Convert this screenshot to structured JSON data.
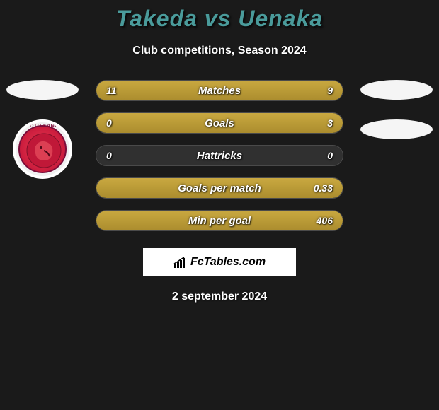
{
  "header": {
    "title": "Takeda vs Uenaka",
    "subtitle": "Club competitions, Season 2024",
    "title_color": "#4a9b9b"
  },
  "players": {
    "left": {
      "name": "Takeda",
      "club_badge_text": "KYOTO SANGA"
    },
    "right": {
      "name": "Uenaka"
    }
  },
  "stats": [
    {
      "label": "Matches",
      "left_val": "11",
      "right_val": "9",
      "left_fill_pct": 55,
      "right_fill_pct": 45,
      "mode": "full"
    },
    {
      "label": "Goals",
      "left_val": "0",
      "right_val": "3",
      "left_fill_pct": 0,
      "right_fill_pct": 100,
      "mode": "full"
    },
    {
      "label": "Hattricks",
      "left_val": "0",
      "right_val": "0",
      "left_fill_pct": 0,
      "right_fill_pct": 0,
      "mode": "empty"
    },
    {
      "label": "Goals per match",
      "left_val": "",
      "right_val": "0.33",
      "left_fill_pct": 0,
      "right_fill_pct": 100,
      "mode": "full"
    },
    {
      "label": "Min per goal",
      "left_val": "",
      "right_val": "406",
      "left_fill_pct": 0,
      "right_fill_pct": 100,
      "mode": "full"
    }
  ],
  "styling": {
    "bar_bg": "#303030",
    "bar_fill_top": "#c9a840",
    "bar_fill_bottom": "#ab8d2e",
    "page_bg": "#1a1a1a",
    "flag_bg": "#f5f5f5",
    "badge_border": "#ffffff",
    "badge_fill": "#d02040"
  },
  "footer": {
    "logo_text": "FcTables.com",
    "date": "2 september 2024"
  }
}
